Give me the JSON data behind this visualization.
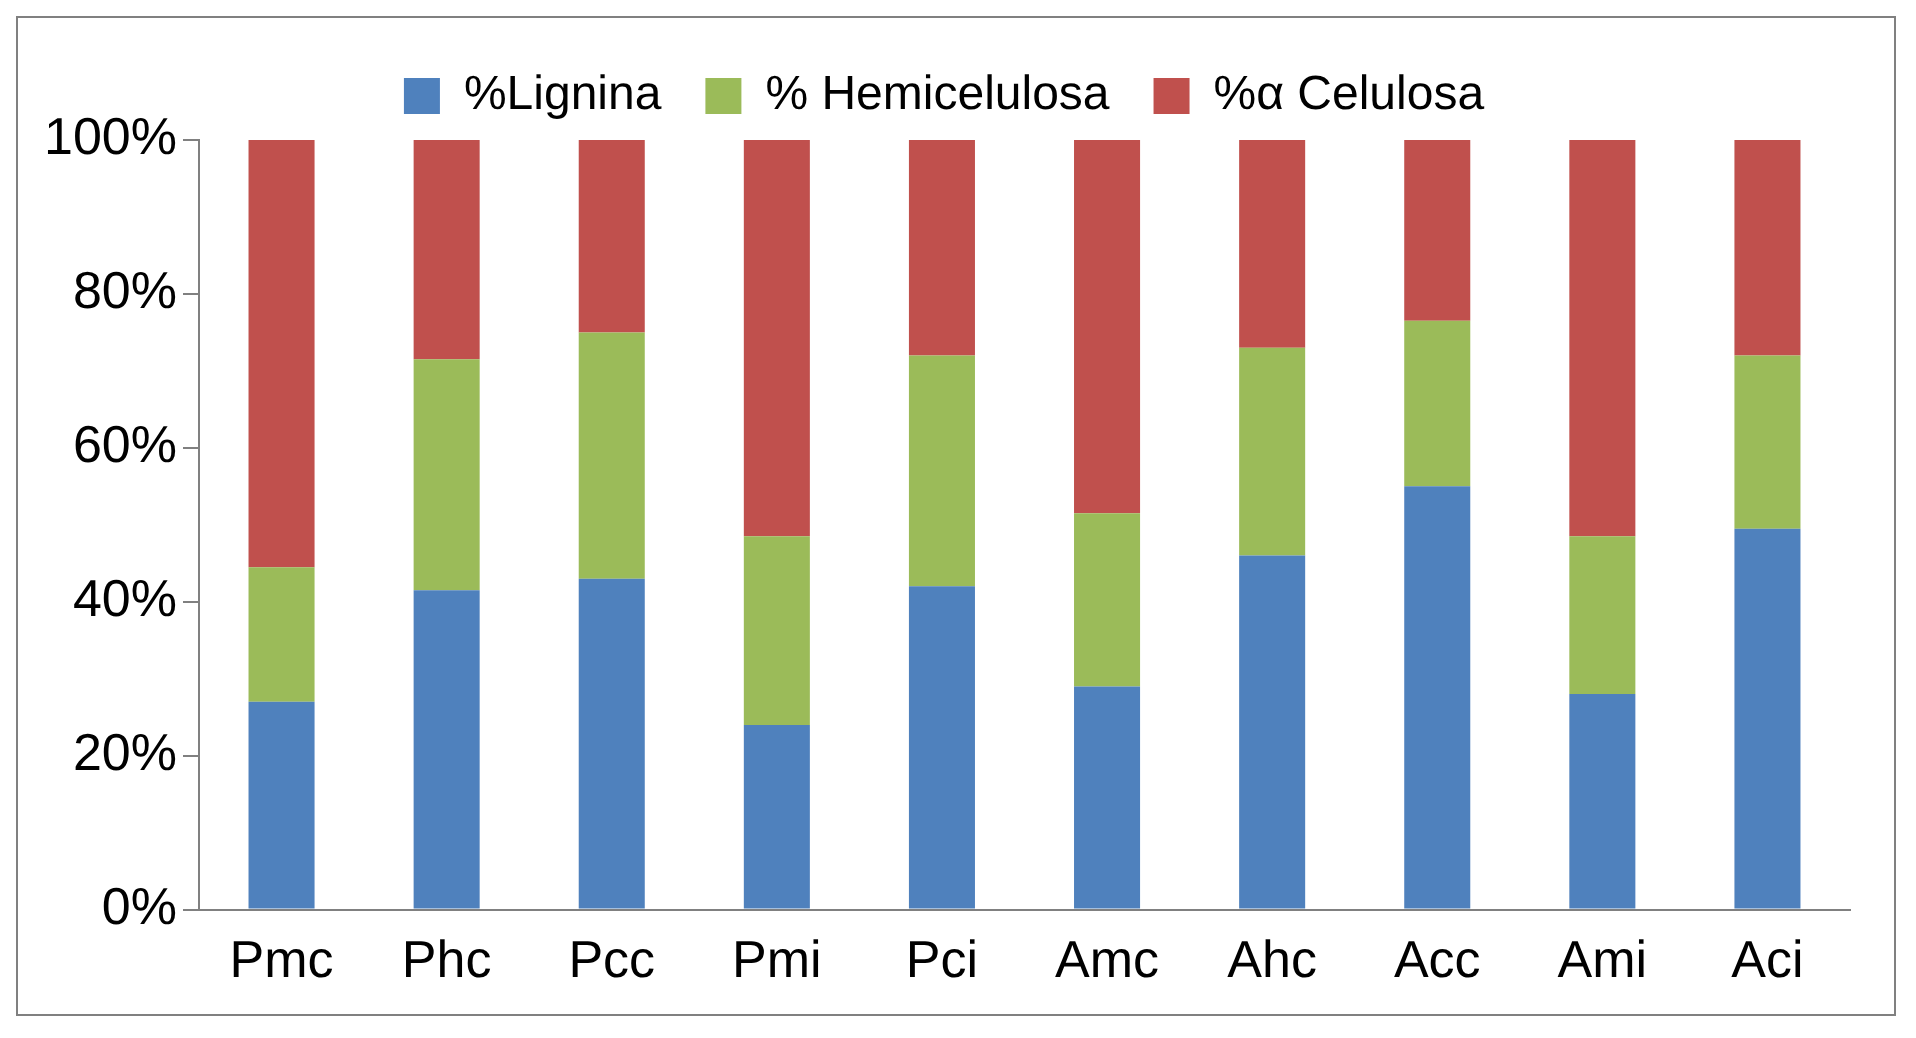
{
  "chart_data": {
    "type": "bar",
    "stacked": true,
    "categories": [
      "Pmc",
      "Phc",
      "Pcc",
      "Pmi",
      "Pci",
      "Amc",
      "Ahc",
      "Acc",
      "Ami",
      "Aci"
    ],
    "series": [
      {
        "name": "%Lignina",
        "color": "#4f81bd",
        "values": [
          27,
          41.5,
          43,
          24,
          42,
          29,
          46,
          55,
          28,
          49.5
        ]
      },
      {
        "name": "% Hemicelulosa",
        "color": "#9bbb59",
        "values": [
          17.5,
          30,
          32,
          24.5,
          30,
          22.5,
          27,
          21.5,
          20.5,
          22.5
        ]
      },
      {
        "name": "%α Celulosa",
        "color": "#c0504d",
        "values": [
          55.5,
          28.5,
          25,
          51.5,
          28,
          48.5,
          27,
          23.5,
          51.5,
          28
        ]
      }
    ],
    "ylim": [
      0,
      100
    ],
    "yticks": [
      {
        "value": 0,
        "label": "0%"
      },
      {
        "value": 20,
        "label": "20%"
      },
      {
        "value": 40,
        "label": "40%"
      },
      {
        "value": 60,
        "label": "60%"
      },
      {
        "value": 80,
        "label": "80%"
      },
      {
        "value": 100,
        "label": "100%"
      }
    ],
    "grid": false,
    "legend": "top"
  }
}
